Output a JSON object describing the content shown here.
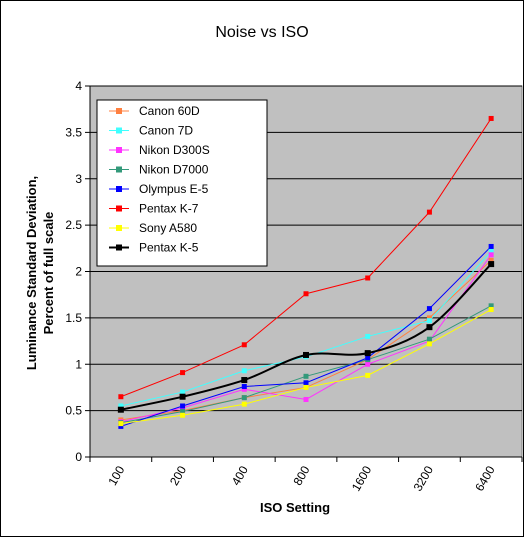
{
  "chart_data": {
    "type": "line",
    "title": "Noise vs ISO",
    "xlabel": "ISO Setting",
    "ylabel_lines": [
      "Luminance Standard Deviation,",
      "Percent of full scale"
    ],
    "categories": [
      "100",
      "200",
      "400",
      "800",
      "1600",
      "3200",
      "6400"
    ],
    "ylim": [
      0,
      4
    ],
    "yticks": [
      "0",
      "0.5",
      "1",
      "1.5",
      "2",
      "2.5",
      "3",
      "3.5",
      "4"
    ],
    "grid": true,
    "legend_position": "top-left",
    "plot_background": "#c0c0c0",
    "series": [
      {
        "name": "Canon 60D",
        "color": "#ff8040",
        "marker": "square",
        "smooth": false,
        "values": [
          0.4,
          0.5,
          0.64,
          0.75,
          1.05,
          1.5,
          2.12
        ]
      },
      {
        "name": "Canon 7D",
        "color": "#40ffff",
        "marker": "square",
        "smooth": false,
        "values": [
          0.55,
          0.7,
          0.93,
          1.08,
          1.3,
          1.47,
          2.22
        ]
      },
      {
        "name": "Nikon D300S",
        "color": "#ff33ff",
        "marker": "square",
        "smooth": false,
        "values": [
          0.38,
          0.53,
          0.73,
          0.62,
          1.0,
          1.25,
          2.18
        ]
      },
      {
        "name": "Nikon D7000",
        "color": "#33997a",
        "marker": "square",
        "smooth": false,
        "values": [
          0.37,
          0.49,
          0.64,
          0.87,
          1.05,
          1.27,
          1.63
        ]
      },
      {
        "name": "Olympus E-5",
        "color": "#0000ff",
        "marker": "square",
        "smooth": false,
        "values": [
          0.33,
          0.55,
          0.76,
          0.8,
          1.07,
          1.6,
          2.27
        ]
      },
      {
        "name": "Pentax K-7",
        "color": "#ff0000",
        "marker": "square",
        "smooth": false,
        "values": [
          0.65,
          0.91,
          1.21,
          1.76,
          1.93,
          2.64,
          3.65
        ]
      },
      {
        "name": "Sony A580",
        "color": "#ffff00",
        "marker": "square",
        "smooth": false,
        "values": [
          0.36,
          0.45,
          0.57,
          0.75,
          0.88,
          1.22,
          1.59
        ]
      },
      {
        "name": "Pentax K-5",
        "color": "#000000",
        "marker": "square",
        "smooth": true,
        "values": [
          0.51,
          0.65,
          0.83,
          1.1,
          1.12,
          1.4,
          2.08
        ]
      }
    ]
  }
}
